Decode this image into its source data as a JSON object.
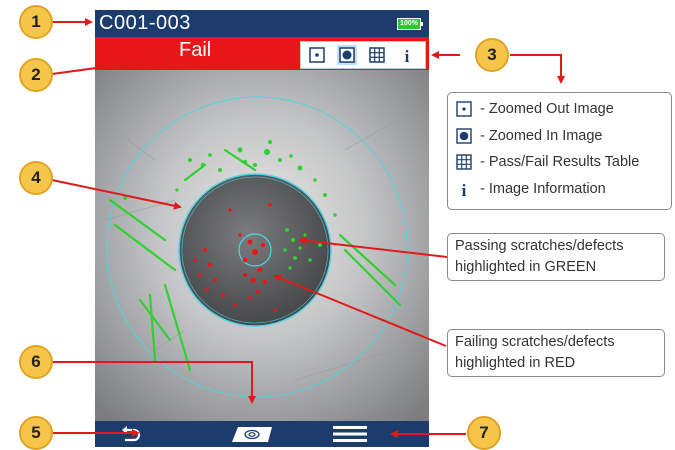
{
  "device": {
    "id": "C001-003",
    "battery": "100%",
    "result": "Fail"
  },
  "toolbar": {
    "buttons": [
      {
        "name": "zoom-out-view",
        "icon": "zoomed-out-icon"
      },
      {
        "name": "zoom-in-view",
        "icon": "zoomed-in-icon"
      },
      {
        "name": "results-table-view",
        "icon": "table-icon"
      },
      {
        "name": "info-view",
        "icon": "info-icon"
      }
    ]
  },
  "bottombar": {
    "buttons": [
      {
        "name": "back",
        "icon": "undo-arrow-icon"
      },
      {
        "name": "capture",
        "icon": "fiber-image-icon"
      },
      {
        "name": "menu",
        "icon": "hamburger-icon"
      }
    ]
  },
  "callouts": [
    "1",
    "2",
    "3",
    "4",
    "5",
    "6",
    "7"
  ],
  "legend": {
    "items": [
      {
        "icon": "zoomed-out-icon",
        "label": "- Zoomed Out Image"
      },
      {
        "icon": "zoomed-in-icon",
        "label": "- Zoomed In Image"
      },
      {
        "icon": "table-icon",
        "label": "- Pass/Fail Results Table"
      },
      {
        "icon": "info-icon",
        "label": "- Image Information"
      }
    ]
  },
  "notes": {
    "passing": [
      "Passing scratches/defects",
      "highlighted in GREEN"
    ],
    "failing": [
      "Failing scratches/defects",
      "highlighted in RED"
    ]
  },
  "colors": {
    "bar_blue": "#1d3c6e",
    "fail_red": "#e81616",
    "callout_yellow": "#f6c64a",
    "arrow_red": "#e01a1a",
    "pass_green": "#30d030",
    "zone_cyan": "#4fd4e4"
  }
}
